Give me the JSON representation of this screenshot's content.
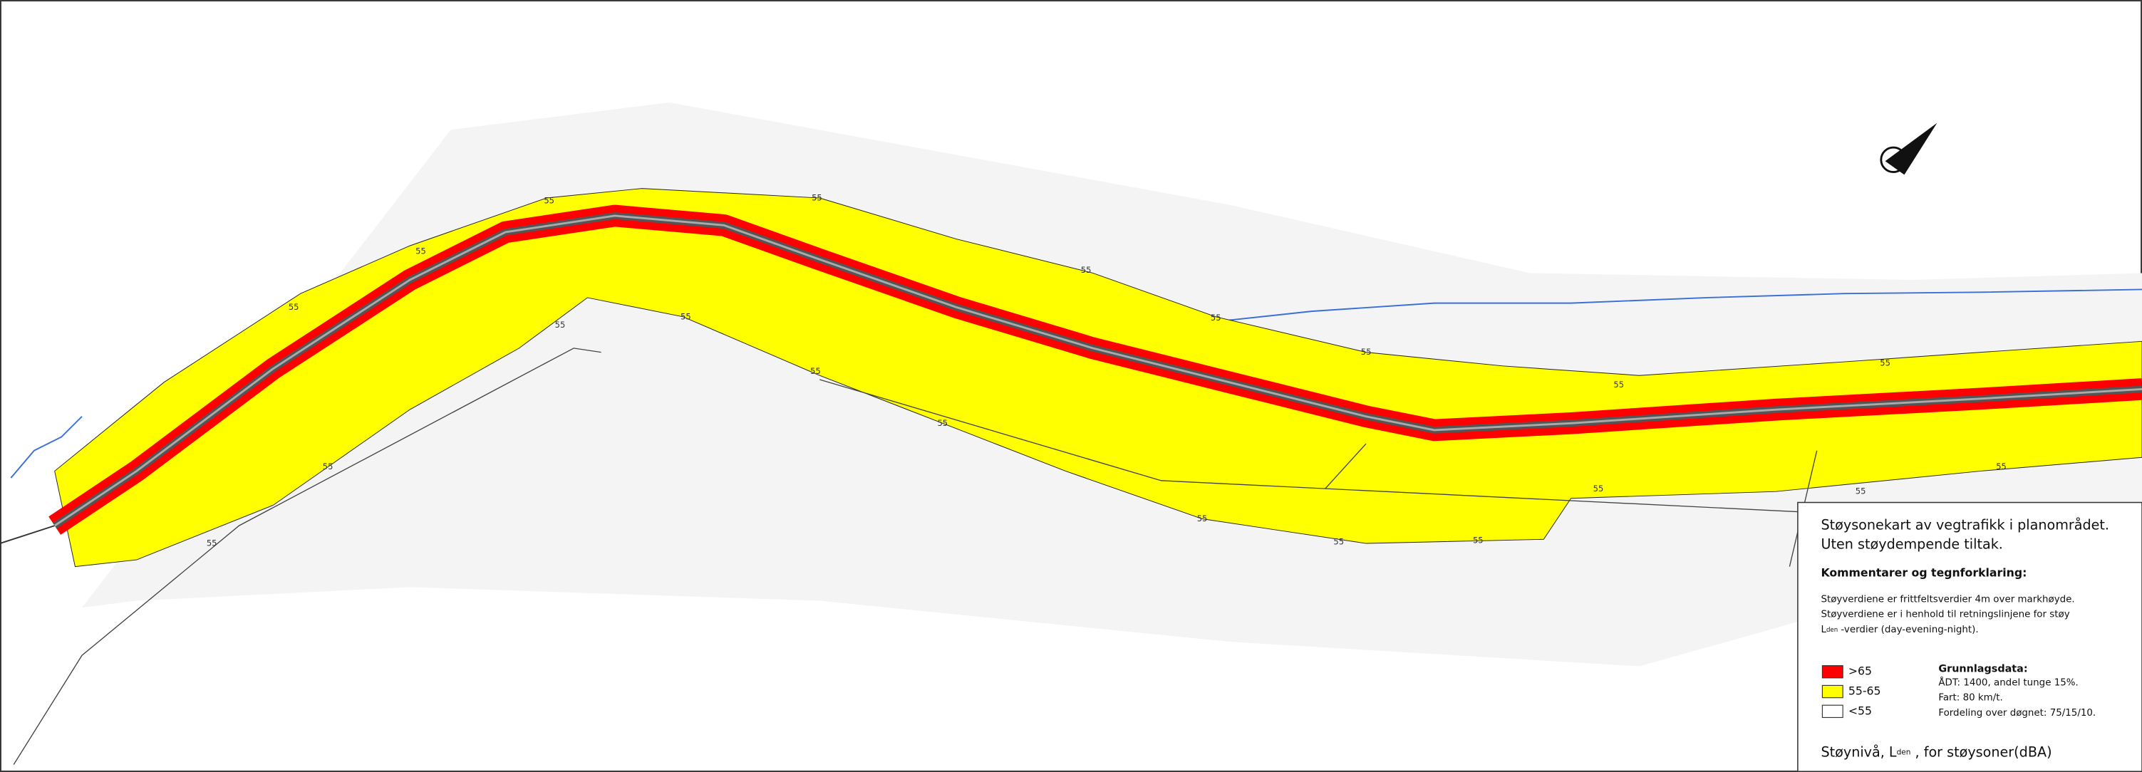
{
  "legend": {
    "title_lines": [
      "Støysonekart av vegtrafikk i planområdet.",
      "Uten støydempende tiltak."
    ],
    "comments_heading": "Kommentarer og tegnforklaring:",
    "comments": [
      "Støyverdiene er frittfeltsverdier 4m over markhøyde.",
      "Støyverdiene er i henhold til retningslinjene for støy"
    ],
    "comment_l": "L",
    "comment_sub": "den",
    "comment_rest": " -verdier (day-evening-night).",
    "classes": [
      {
        "label": ">65",
        "color": "#ff0000"
      },
      {
        "label": "55-65",
        "color": "#ffff00"
      },
      {
        "label": "<55",
        "color": "#ffffff"
      }
    ],
    "basis_heading": "Grunnlagsdata:",
    "basis": [
      "ÅDT: 1400, andel tunge 15%.",
      "Fart: 80 km/t.",
      "Fordeling over døgnet: 75/15/10."
    ],
    "footer_l": "Støynivå, L",
    "footer_sub": "den",
    "footer_rest": " , for støysoner(dBA)"
  },
  "contour_labels": [
    "55",
    "55",
    "55",
    "55",
    "55",
    "55",
    "55",
    "55",
    "55",
    "55",
    "55",
    "55",
    "55",
    "55",
    "55",
    "55",
    "55",
    "55",
    "55",
    "55",
    "55"
  ]
}
